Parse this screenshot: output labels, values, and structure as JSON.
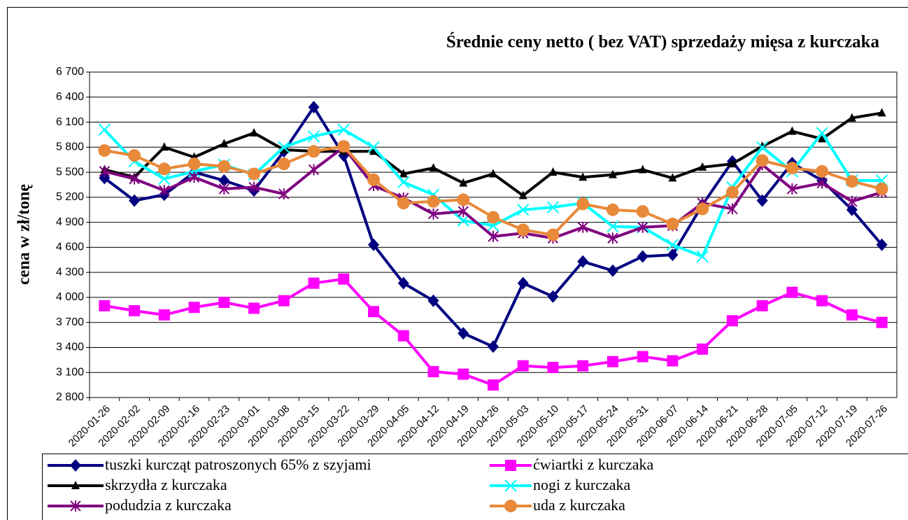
{
  "chart_data": {
    "type": "line",
    "title": "Średnie ceny netto ( bez VAT) sprzedaży mięsa z kurczaka",
    "y_label": "cena w zł/tonę",
    "categories": [
      "2020-01-26",
      "2020-02-02",
      "2020-02-09",
      "2020-02-16",
      "2020-02-23",
      "2020-03-01",
      "2020-03-08",
      "2020-03-15",
      "2020-03-22",
      "2020-03-29",
      "2020-04-05",
      "2020-04-12",
      "2020-04-19",
      "2020-04-26",
      "2020-05-03",
      "2020-05-10",
      "2020-05-17",
      "2020-05-24",
      "2020-05-31",
      "2020-06-07",
      "2020-06-14",
      "2020-06-21",
      "2020-06-28",
      "2020-07-05",
      "2020-07-12",
      "2020-07-19",
      "2020-07-26"
    ],
    "ylim": [
      2800,
      6700
    ],
    "yticks": [
      {
        "value": 2800,
        "label": "2 800"
      },
      {
        "value": 3100,
        "label": "3 100"
      },
      {
        "value": 3400,
        "label": "3 400"
      },
      {
        "value": 3700,
        "label": "3 700"
      },
      {
        "value": 4000,
        "label": "4 000"
      },
      {
        "value": 4300,
        "label": "4 300"
      },
      {
        "value": 4600,
        "label": "4 600"
      },
      {
        "value": 4900,
        "label": "4 900"
      },
      {
        "value": 5200,
        "label": "5 200"
      },
      {
        "value": 5500,
        "label": "5 500"
      },
      {
        "value": 5800,
        "label": "5 800"
      },
      {
        "value": 6100,
        "label": "6 100"
      },
      {
        "value": 6400,
        "label": "6 400"
      },
      {
        "value": 6700,
        "label": "6 700"
      }
    ],
    "grid": true,
    "series": [
      {
        "name": "tuszki kurcząt patroszonych 65% z szyjami",
        "color": "#000080",
        "marker": "diamond",
        "values": [
          5430,
          5160,
          5230,
          5500,
          5400,
          5280,
          5750,
          6280,
          5700,
          4630,
          4170,
          3960,
          3570,
          3410,
          4170,
          4010,
          4430,
          4320,
          4490,
          4510,
          5110,
          5630,
          5160,
          5610,
          5400,
          5050,
          4630
        ]
      },
      {
        "name": "ćwiartki z kurczaka",
        "color": "#ff00ff",
        "marker": "square",
        "values": [
          3900,
          3840,
          3790,
          3880,
          3940,
          3870,
          3960,
          4170,
          4220,
          3830,
          3540,
          3110,
          3080,
          2950,
          3180,
          3160,
          3180,
          3230,
          3290,
          3240,
          3380,
          3720,
          3900,
          4060,
          3960,
          3790,
          3700
        ]
      },
      {
        "name": "skrzydła z kurczaka",
        "color": "#000000",
        "marker": "triangle",
        "values": [
          5530,
          5440,
          5800,
          5680,
          5840,
          5970,
          5770,
          5750,
          5750,
          5750,
          5480,
          5550,
          5370,
          5480,
          5220,
          5500,
          5440,
          5470,
          5530,
          5430,
          5560,
          5600,
          5810,
          5990,
          5900,
          6150,
          6210
        ]
      },
      {
        "name": "nogi z kurczaka",
        "color": "#00ffff",
        "marker": "x",
        "values": [
          6010,
          5630,
          5420,
          5510,
          5590,
          5470,
          5800,
          5930,
          6010,
          5800,
          5380,
          5230,
          4920,
          4860,
          5050,
          5080,
          5130,
          4850,
          4840,
          4630,
          4490,
          5320,
          5800,
          5510,
          5970,
          5400,
          5400
        ]
      },
      {
        "name": "podudzia z kurczaka",
        "color": "#800080",
        "marker": "asterisk",
        "values": [
          5510,
          5420,
          5280,
          5440,
          5300,
          5320,
          5240,
          5530,
          5800,
          5340,
          5190,
          5000,
          5030,
          4730,
          4770,
          4710,
          4840,
          4710,
          4840,
          4860,
          5130,
          5060,
          5590,
          5300,
          5370,
          5150,
          5260
        ]
      },
      {
        "name": "uda z kurczaka",
        "color": "#e8893a",
        "marker": "circle",
        "values": [
          5760,
          5700,
          5540,
          5600,
          5570,
          5480,
          5600,
          5750,
          5810,
          5410,
          5130,
          5150,
          5170,
          4960,
          4810,
          4750,
          5120,
          5050,
          5030,
          4880,
          5060,
          5260,
          5640,
          5550,
          5510,
          5390,
          5300
        ]
      }
    ]
  }
}
